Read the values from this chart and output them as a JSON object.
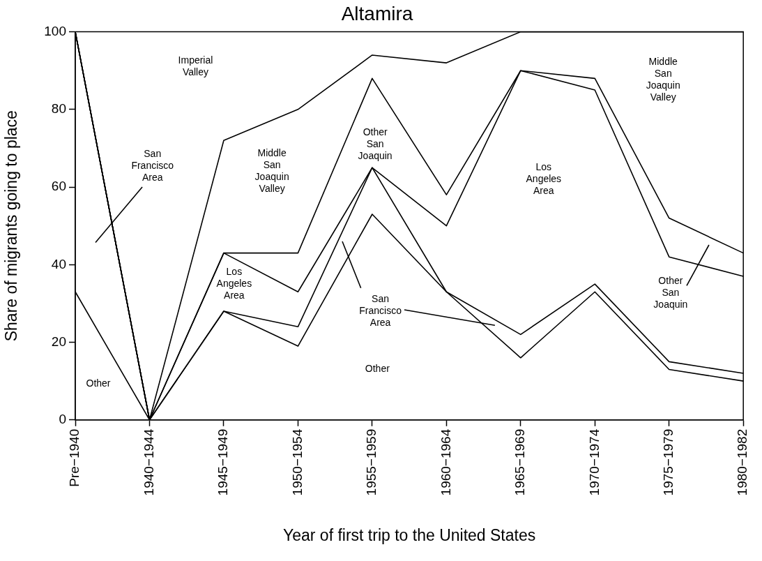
{
  "chart_data": {
    "type": "line",
    "title": "Altamira",
    "xlabel": "Year of first trip to the United States",
    "ylabel": "Share of migrants going to place",
    "categories": [
      "Pre−1940",
      "1940−1944",
      "1945−1949",
      "1950−1954",
      "1955−1959",
      "1960−1964",
      "1965−1969",
      "1970−1974",
      "1975−1979",
      "1980−1982"
    ],
    "series": [
      {
        "color": "#000000",
        "values": [
          33,
          0,
          28,
          19,
          53,
          33,
          16,
          33,
          13,
          10
        ]
      },
      {
        "color": "#000000",
        "values": [
          100,
          0,
          28,
          24,
          65,
          33,
          22,
          35,
          15,
          12
        ]
      },
      {
        "color": "#000000",
        "values": [
          100,
          0,
          43,
          33,
          65,
          50,
          90,
          85,
          42,
          37
        ]
      },
      {
        "color": "#000000",
        "values": [
          100,
          0,
          43,
          43,
          88,
          58,
          90,
          88,
          52,
          43
        ]
      },
      {
        "color": "#000000",
        "values": [
          100,
          0,
          72,
          80,
          94,
          92,
          100,
          100,
          100,
          100
        ]
      }
    ],
    "ylim": [
      0,
      100
    ],
    "yticks": [
      0,
      20,
      40,
      60,
      80,
      100
    ],
    "grid": false,
    "legend": false,
    "marker": "none",
    "line_style": "solid",
    "annotations": [
      "Imperial Valley",
      "San Francisco Area",
      "Other",
      "Middle San Joaquin Valley",
      "Los Angeles Area",
      "Other San Joaquin",
      "San Francisco Area",
      "Other",
      "Los Angeles Area",
      "Middle San Joaquin Valley",
      "Other San Joaquin"
    ]
  }
}
